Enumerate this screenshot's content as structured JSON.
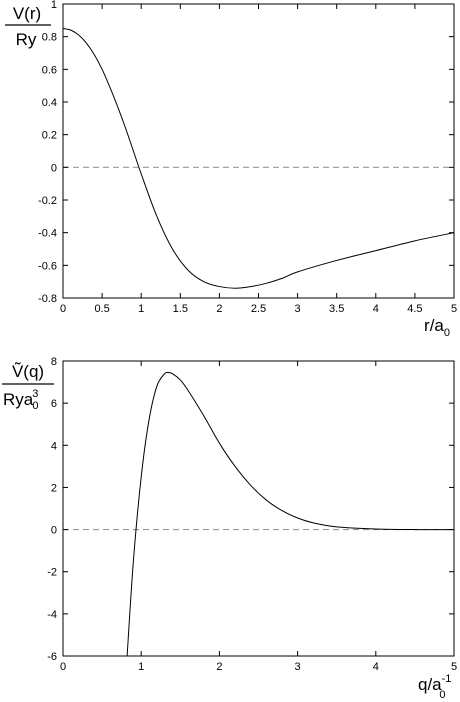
{
  "chart_data": [
    {
      "type": "line",
      "ylabel_top": "V(r)",
      "ylabel_bottom": "Ry",
      "xlabel": "r/a",
      "xlabel_sub": "0",
      "xlim": [
        0,
        5
      ],
      "ylim": [
        -0.8,
        1
      ],
      "xticks": [
        "0",
        "0.5",
        "1",
        "1.5",
        "2",
        "2.5",
        "3",
        "3.5",
        "4",
        "4.5",
        "5"
      ],
      "yticks": [
        "1",
        "0.8",
        "0.6",
        "0.4",
        "0.2",
        "0",
        "-0.2",
        "-0.4",
        "-0.6",
        "-0.8"
      ],
      "reference_line": {
        "y": 0,
        "style": "dashed",
        "color": "#999999"
      },
      "series": [
        {
          "color": "#000000",
          "x": [
            0,
            0.1,
            0.2,
            0.3,
            0.4,
            0.5,
            0.6,
            0.7,
            0.8,
            0.9,
            1.0,
            1.2,
            1.4,
            1.6,
            1.8,
            2.0,
            2.2,
            2.4,
            2.6,
            2.8,
            3.0,
            3.5,
            4.0,
            4.5,
            5.0
          ],
          "y": [
            0.85,
            0.84,
            0.81,
            0.76,
            0.69,
            0.6,
            0.49,
            0.37,
            0.24,
            0.1,
            -0.04,
            -0.3,
            -0.5,
            -0.63,
            -0.7,
            -0.73,
            -0.74,
            -0.73,
            -0.71,
            -0.68,
            -0.64,
            -0.57,
            -0.51,
            -0.45,
            -0.4
          ]
        }
      ]
    },
    {
      "type": "line",
      "ylabel_top": "Ṽ(q)",
      "ylabel_bottom": "Rya",
      "ylabel_bottom_sub": "0",
      "ylabel_bottom_sup": "3",
      "xlabel": "q/a",
      "xlabel_sub": "0",
      "xlabel_sup": "-1",
      "xlim": [
        0,
        5
      ],
      "ylim": [
        -6,
        8
      ],
      "xticks": [
        "0",
        "1",
        "2",
        "3",
        "4",
        "5"
      ],
      "yticks": [
        "8",
        "6",
        "4",
        "2",
        "0",
        "-2",
        "-4",
        "-6"
      ],
      "reference_line": {
        "y": 0,
        "style": "dashed",
        "color": "#999999"
      },
      "series": [
        {
          "color": "#000000",
          "x": [
            0.82,
            0.9,
            1.0,
            1.1,
            1.2,
            1.3,
            1.35,
            1.4,
            1.5,
            1.6,
            1.8,
            2.0,
            2.2,
            2.4,
            2.6,
            2.8,
            3.0,
            3.2,
            3.5,
            4.0,
            4.5,
            5.0
          ],
          "y": [
            -6.0,
            -1.5,
            2.5,
            5.2,
            6.8,
            7.4,
            7.45,
            7.4,
            7.1,
            6.6,
            5.4,
            4.1,
            3.0,
            2.1,
            1.4,
            0.9,
            0.55,
            0.32,
            0.13,
            0.03,
            0.0,
            0.0
          ]
        }
      ]
    }
  ]
}
